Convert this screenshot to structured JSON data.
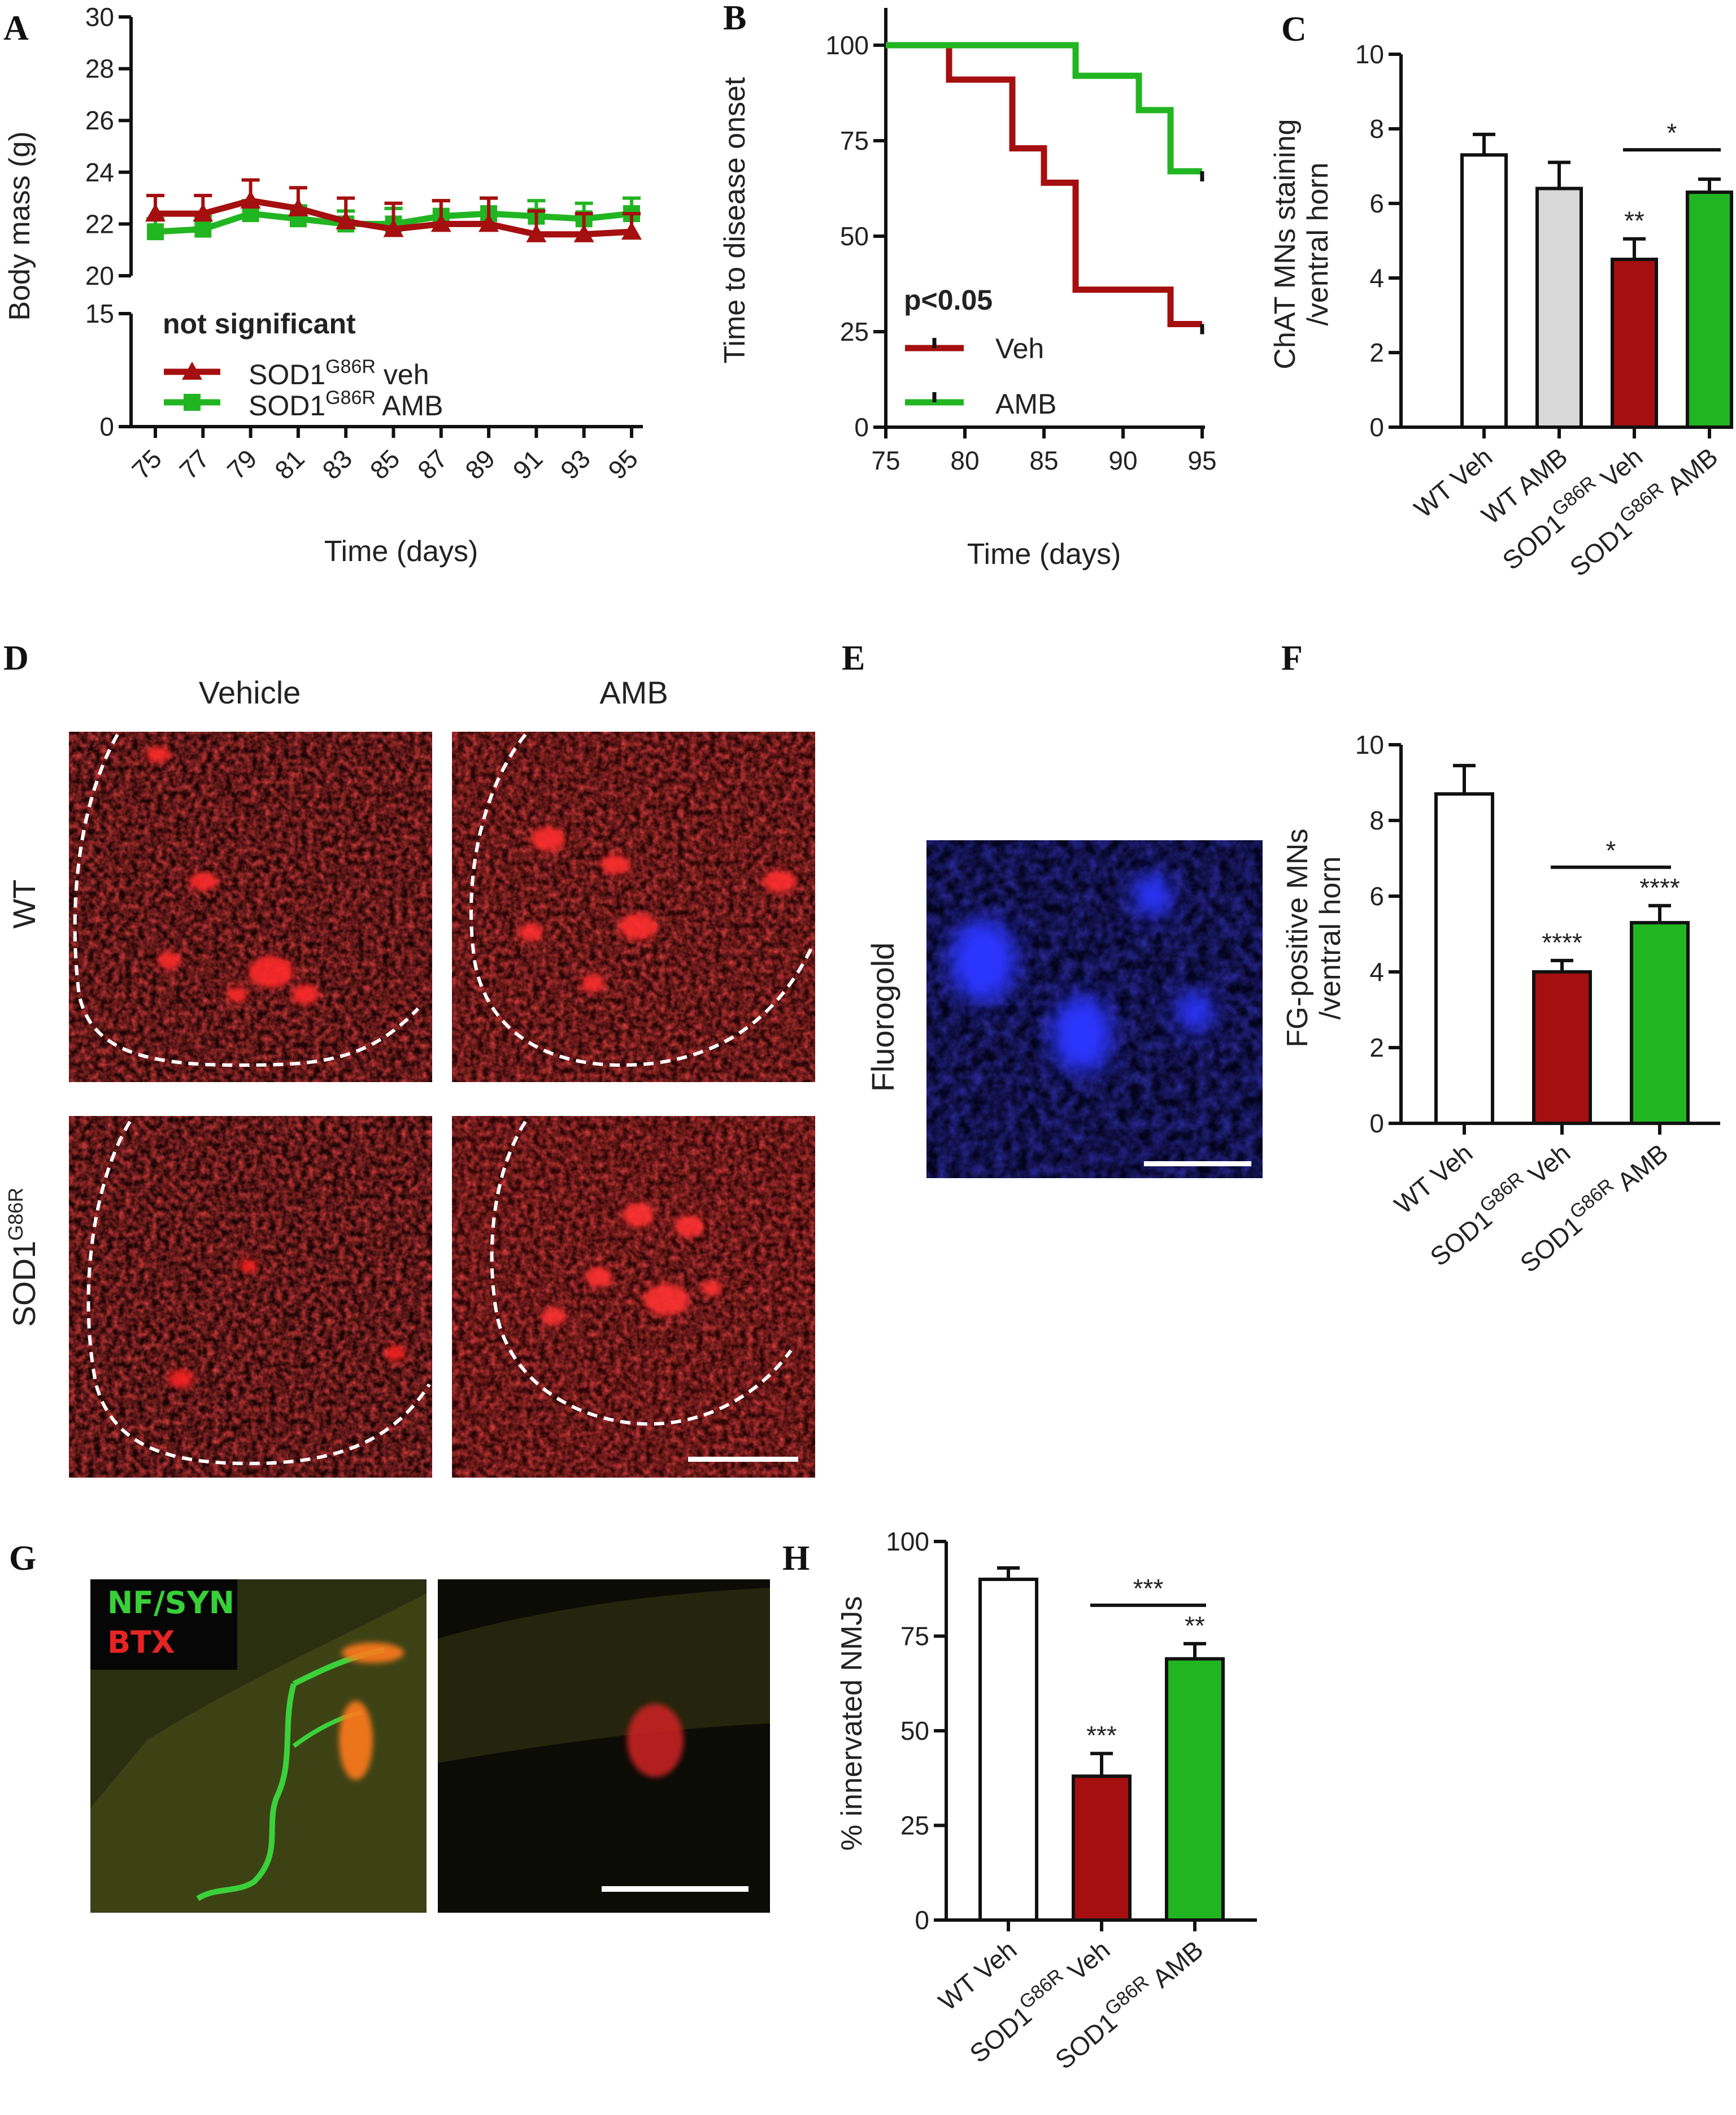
{
  "panels": {
    "A": "A",
    "B": "B",
    "C": "C",
    "D": "D",
    "E": "E",
    "F": "F",
    "G": "G",
    "H": "H"
  },
  "colors": {
    "veh": "#a50f0f",
    "amb": "#22b522",
    "wt": "#ffffff",
    "wtamb": "#d8d8d8"
  },
  "chart_data": [
    {
      "id": "A",
      "type": "line",
      "ylabel": "Body mass (g)",
      "xlabel": "Time (days)",
      "x": [
        75,
        77,
        79,
        81,
        83,
        85,
        87,
        89,
        91,
        93,
        95
      ],
      "upper_ylim": [
        20,
        30
      ],
      "upper_yticks": [
        20,
        22,
        24,
        26,
        28,
        30
      ],
      "lower_ylim": [
        0,
        15
      ],
      "lower_yticks": [
        0,
        15
      ],
      "annotation": "not significant",
      "series": [
        {
          "name": "SOD1G86R veh",
          "legend_base": "SOD1",
          "legend_sup": "G86R",
          "legend_suffix": " veh",
          "values": [
            22.4,
            22.4,
            22.9,
            22.6,
            22.1,
            21.8,
            22.0,
            22.0,
            21.6,
            21.6,
            21.7
          ],
          "err": [
            0.7,
            0.7,
            0.8,
            0.8,
            0.9,
            1.0,
            0.9,
            1.0,
            0.9,
            0.8,
            0.7
          ]
        },
        {
          "name": "SOD1G86R AMB",
          "legend_base": "SOD1",
          "legend_sup": "G86R",
          "legend_suffix": " AMB",
          "values": [
            21.7,
            21.8,
            22.4,
            22.2,
            22.0,
            22.0,
            22.3,
            22.4,
            22.3,
            22.2,
            22.4
          ],
          "err": [
            0.5,
            0.5,
            0.5,
            0.5,
            0.5,
            0.6,
            0.6,
            0.6,
            0.6,
            0.6,
            0.6
          ]
        }
      ]
    },
    {
      "id": "B",
      "type": "line",
      "ylabel": "Time to disease onset",
      "xlabel": "Time (days)",
      "xlim": [
        75,
        95
      ],
      "ylim": [
        0,
        100
      ],
      "xticks": [
        75,
        80,
        85,
        90,
        95
      ],
      "yticks": [
        0,
        25,
        50,
        75,
        100
      ],
      "annotation": "p<0.05",
      "series": [
        {
          "name": "Veh",
          "x": [
            75,
            79,
            79,
            83,
            83,
            85,
            85,
            87,
            87,
            93,
            93,
            95
          ],
          "y": [
            100,
            100,
            91,
            91,
            73,
            73,
            64,
            64,
            36,
            36,
            27,
            27
          ]
        },
        {
          "name": "AMB",
          "x": [
            75,
            87,
            87,
            91,
            91,
            93,
            93,
            95
          ],
          "y": [
            100,
            100,
            92,
            92,
            83,
            83,
            67,
            67
          ]
        }
      ]
    },
    {
      "id": "C",
      "type": "bar",
      "ylabel": "ChAT MNs staining /ventral horn",
      "ylim": [
        0,
        10
      ],
      "yticks": [
        0,
        2,
        4,
        6,
        8,
        10
      ],
      "categories": [
        "WT Veh",
        "WT AMB",
        "SOD1G86R Veh",
        "SOD1G86R AMB"
      ],
      "values": [
        7.3,
        6.4,
        4.5,
        6.3
      ],
      "err": [
        0.55,
        0.7,
        0.55,
        0.35
      ],
      "stars": [
        "",
        "",
        "**",
        ""
      ],
      "bracket": {
        "from": 2,
        "to": 3,
        "label": "*"
      }
    },
    {
      "id": "F",
      "type": "bar",
      "ylabel": "FG-positive MNs /ventral horn",
      "ylim": [
        0,
        10
      ],
      "yticks": [
        0,
        2,
        4,
        6,
        8,
        10
      ],
      "categories": [
        "WT Veh",
        "SOD1G86R Veh",
        "SOD1G86R AMB"
      ],
      "values": [
        8.7,
        4.0,
        5.3
      ],
      "err": [
        0.75,
        0.3,
        0.45
      ],
      "stars": [
        "",
        "****",
        "****"
      ],
      "bracket": {
        "from": 1,
        "to": 2,
        "label": "*"
      }
    },
    {
      "id": "H",
      "type": "bar",
      "ylabel": "% innervated NMJs",
      "ylim": [
        0,
        100
      ],
      "yticks": [
        0,
        25,
        50,
        75,
        100
      ],
      "categories": [
        "WT Veh",
        "SOD1G86R Veh",
        "SOD1G86R AMB"
      ],
      "values": [
        90,
        38,
        69
      ],
      "err": [
        3,
        6,
        4
      ],
      "stars": [
        "",
        "***",
        "**"
      ],
      "bracket": {
        "from": 1,
        "to": 2,
        "label": "***"
      }
    }
  ],
  "images": {
    "D": {
      "col1": "Vehicle",
      "col2": "AMB",
      "row1": "WT",
      "row2_base": "SOD1",
      "row2_sup": "G86R"
    },
    "E": {
      "label": "Fluorogold"
    },
    "G": {
      "label1": "NF/SYN",
      "label2": "BTX"
    }
  }
}
